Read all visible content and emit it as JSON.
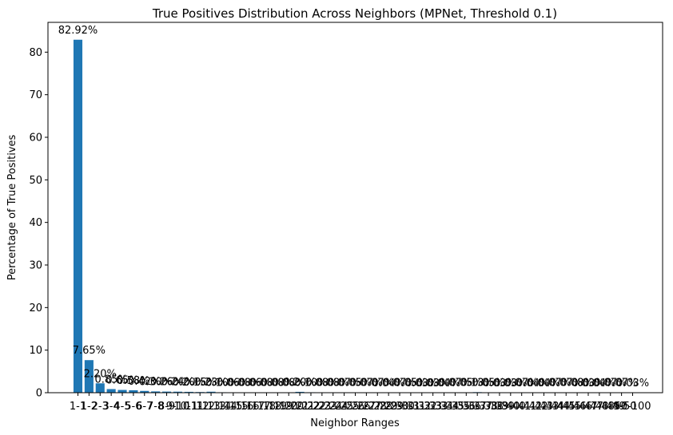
{
  "chart_data": {
    "type": "bar",
    "title": "True Positives Distribution Across Neighbors (MPNet, Threshold 0.1)",
    "xlabel": "Neighbor Ranges",
    "ylabel": "Percentage of True Positives",
    "ylim": [
      0,
      87
    ],
    "yticks": [
      0,
      10,
      20,
      30,
      40,
      50,
      60,
      70,
      80
    ],
    "grid": false,
    "legend": "none",
    "bar_color": "#1f77b4",
    "categories": [
      "1-1",
      "1-2",
      "2-3",
      "3-4",
      "4-5",
      "5-6",
      "6-7",
      "7-8",
      "8-9",
      "9-10",
      "10-11",
      "11-12",
      "12-13",
      "13-14",
      "14-15",
      "15-16",
      "16-17",
      "17-18",
      "18-19",
      "19-20",
      "20-21",
      "21-22",
      "22-23",
      "23-24",
      "24-25",
      "25-26",
      "26-27",
      "27-28",
      "28-29",
      "29-30",
      "30-31",
      "31-32",
      "32-33",
      "33-34",
      "34-35",
      "35-36",
      "36-37",
      "37-38",
      "38-39",
      "39-40",
      "40-41",
      "41-42",
      "42-43",
      "43-44",
      "44-45",
      "45-46",
      "46-47",
      "47-48",
      "48-49",
      "49-50",
      "50-100"
    ],
    "values": [
      82.92,
      7.65,
      2.2,
      0.85,
      0.65,
      0.58,
      0.42,
      0.3,
      0.26,
      0.24,
      0.2,
      0.15,
      0.23,
      0.1,
      0.06,
      0.08,
      0.06,
      0.08,
      0.08,
      0.08,
      0.2,
      0.1,
      0.08,
      0.08,
      0.07,
      0.05,
      0.07,
      0.07,
      0.04,
      0.07,
      0.05,
      0.03,
      0.03,
      0.04,
      0.07,
      0.05,
      0.13,
      0.05,
      0.03,
      0.03,
      0.07,
      0.04,
      0.04,
      0.07,
      0.07,
      0.08,
      0.03,
      0.04,
      0.07,
      0.07,
      0.03
    ],
    "value_labels": [
      "82.92%",
      "7.65%",
      "2.20%",
      "0.85%",
      "0.65%",
      "0.58%",
      "0.42%",
      "0.30%",
      "0.26%",
      "0.24%",
      "0.20%",
      "0.15%",
      "0.23%",
      "0.10%",
      "0.06%",
      "0.08%",
      "0.06%",
      "0.08%",
      "0.08%",
      "0.08%",
      "0.20%",
      "0.10%",
      "0.08%",
      "0.08%",
      "0.07%",
      "0.05%",
      "0.07%",
      "0.07%",
      "0.04%",
      "0.07%",
      "0.05%",
      "0.03%",
      "0.03%",
      "0.04%",
      "0.07%",
      "0.05%",
      "0.13%",
      "0.05%",
      "0.03%",
      "0.03%",
      "0.07%",
      "0.04%",
      "0.04%",
      "0.07%",
      "0.07%",
      "0.08%",
      "0.03%",
      "0.04%",
      "0.07%",
      "0.07%",
      "0.03%"
    ]
  }
}
